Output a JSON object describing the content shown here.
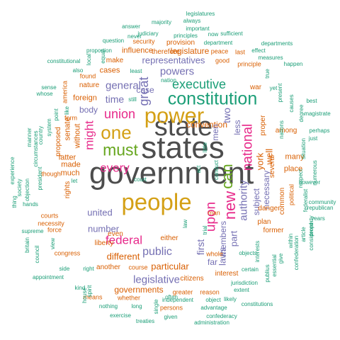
{
  "colors": {
    "dark_gray": "#4d4d4d",
    "gold": "#d4a016",
    "teal": "#1b9e77",
    "orange": "#d95f02",
    "purple": "#7570b3",
    "magenta": "#e7298a",
    "green": "#66a61e"
  },
  "words": [
    {
      "text": "government",
      "size": 1,
      "color": "dark_gray",
      "weight": 200
    },
    {
      "text": "states",
      "size": 1,
      "color": "dark_gray",
      "weight": 190
    },
    {
      "text": "state",
      "size": 1,
      "color": "dark_gray",
      "weight": 180
    },
    {
      "text": "power",
      "size": 1,
      "color": "gold",
      "weight": 120
    },
    {
      "text": "people",
      "size": 1,
      "color": "gold",
      "weight": 120
    },
    {
      "text": "constitution",
      "size": 1,
      "color": "teal",
      "weight": 110
    },
    {
      "text": "one",
      "size": 1,
      "color": "gold",
      "weight": 100
    },
    {
      "text": "can",
      "size": 1,
      "color": "green",
      "weight": 95
    },
    {
      "text": "must",
      "size": 1,
      "color": "green",
      "weight": 90
    },
    {
      "text": "new",
      "size": 1,
      "color": "magenta",
      "weight": 85
    },
    {
      "text": "upon",
      "size": 1,
      "color": "magenta",
      "weight": 80
    },
    {
      "text": "national",
      "size": 1,
      "color": "magenta",
      "weight": 70
    },
    {
      "text": "union",
      "size": 1,
      "color": "magenta",
      "weight": 70
    },
    {
      "text": "might",
      "size": 1,
      "color": "magenta",
      "weight": 65
    },
    {
      "text": "every",
      "size": 1,
      "color": "magenta",
      "weight": 60
    },
    {
      "text": "federal",
      "size": 1,
      "color": "magenta",
      "weight": 60
    },
    {
      "text": "great",
      "size": 1,
      "color": "purple",
      "weight": 55
    },
    {
      "text": "executive",
      "size": 1,
      "color": "teal",
      "weight": 55
    },
    {
      "text": "authority",
      "size": 1,
      "color": "purple",
      "weight": 50
    },
    {
      "text": "public",
      "size": 1,
      "color": "purple",
      "weight": 45
    },
    {
      "text": "general",
      "size": 1,
      "color": "purple",
      "weight": 45
    },
    {
      "text": "powers",
      "size": 1,
      "color": "purple",
      "weight": 45
    },
    {
      "text": "legislative",
      "size": 1,
      "color": "purple",
      "weight": 40
    },
    {
      "text": "first",
      "size": 1,
      "color": "purple",
      "weight": 40
    },
    {
      "text": "representatives",
      "size": 1,
      "color": "purple",
      "weight": 40
    },
    {
      "text": "time",
      "size": 1,
      "color": "purple",
      "weight": 40
    },
    {
      "text": "two",
      "size": 1,
      "color": "purple",
      "weight": 40
    },
    {
      "text": "part",
      "size": 1,
      "color": "purple",
      "weight": 35
    },
    {
      "text": "laws",
      "size": 1,
      "color": "purple",
      "weight": 35
    },
    {
      "text": "york",
      "size": 1,
      "color": "orange",
      "weight": 35
    },
    {
      "text": "well",
      "size": 1,
      "color": "orange",
      "weight": 35
    },
    {
      "text": "legislature",
      "size": 1,
      "color": "orange",
      "weight": 30
    },
    {
      "text": "particular",
      "size": 1,
      "color": "orange",
      "weight": 30
    },
    {
      "text": "different",
      "size": 1,
      "color": "orange",
      "weight": 30
    },
    {
      "text": "governments",
      "size": 1,
      "color": "orange",
      "weight": 30
    },
    {
      "text": "convention",
      "size": 1,
      "color": "orange",
      "weight": 30
    },
    {
      "text": "number",
      "size": 1,
      "color": "purple",
      "weight": 30
    },
    {
      "text": "united",
      "size": 1,
      "color": "purple",
      "weight": 28
    },
    {
      "text": "men",
      "size": 1,
      "color": "purple",
      "weight": 28
    },
    {
      "text": "less",
      "size": 1,
      "color": "purple",
      "weight": 28
    },
    {
      "text": "members",
      "size": 1,
      "color": "purple",
      "weight": 28
    },
    {
      "text": "subject",
      "size": 1,
      "color": "purple",
      "weight": 28
    },
    {
      "text": "necessary",
      "size": 1,
      "color": "purple",
      "weight": 28
    },
    {
      "text": "body",
      "size": 1,
      "color": "purple",
      "weight": 25
    },
    {
      "text": "case",
      "size": 1,
      "color": "purple",
      "weight": 25
    },
    {
      "text": "far",
      "size": 1,
      "color": "purple",
      "weight": 25
    },
    {
      "text": "cases",
      "size": 1,
      "color": "orange",
      "weight": 22
    },
    {
      "text": "influence",
      "size": 1,
      "color": "orange",
      "weight": 22
    },
    {
      "text": "therefore",
      "size": 1,
      "color": "orange",
      "weight": 20
    },
    {
      "text": "senate",
      "size": 1,
      "color": "orange",
      "weight": 20
    },
    {
      "text": "made",
      "size": 1,
      "color": "orange",
      "weight": 20
    },
    {
      "text": "much",
      "size": 1,
      "color": "orange",
      "weight": 20
    },
    {
      "text": "latter",
      "size": 1,
      "color": "orange",
      "weight": 20
    },
    {
      "text": "without",
      "size": 1,
      "color": "orange",
      "weight": 20
    },
    {
      "text": "proposed",
      "size": 1,
      "color": "orange",
      "weight": 20
    },
    {
      "text": "foreign",
      "size": 1,
      "color": "orange",
      "weight": 20
    },
    {
      "text": "nature",
      "size": 1,
      "color": "orange",
      "weight": 18
    },
    {
      "text": "rights",
      "size": 1,
      "color": "orange",
      "weight": 18
    },
    {
      "text": "even",
      "size": 1,
      "color": "orange",
      "weight": 18
    },
    {
      "text": "liberty",
      "size": 1,
      "color": "orange",
      "weight": 18
    },
    {
      "text": "another",
      "size": 1,
      "color": "orange",
      "weight": 18
    },
    {
      "text": "either",
      "size": 1,
      "color": "orange",
      "weight": 18
    },
    {
      "text": "citizens",
      "size": 1,
      "color": "orange",
      "weight": 18
    },
    {
      "text": "interest",
      "size": 1,
      "color": "orange",
      "weight": 18
    },
    {
      "text": "plan",
      "size": 1,
      "color": "orange",
      "weight": 18
    },
    {
      "text": "former",
      "size": 1,
      "color": "orange",
      "weight": 18
    },
    {
      "text": "several",
      "size": 1,
      "color": "orange",
      "weight": 18
    },
    {
      "text": "many",
      "size": 1,
      "color": "orange",
      "weight": 18
    },
    {
      "text": "place",
      "size": 1,
      "color": "orange",
      "weight": 18
    },
    {
      "text": "proper",
      "size": 1,
      "color": "orange",
      "weight": 18
    },
    {
      "text": "danger",
      "size": 1,
      "color": "orange",
      "weight": 16
    },
    {
      "text": "common",
      "size": 1,
      "color": "orange",
      "weight": 16
    },
    {
      "text": "political",
      "size": 1,
      "color": "orange",
      "weight": 16
    },
    {
      "text": "among",
      "size": 1,
      "color": "orange",
      "weight": 16
    },
    {
      "text": "war",
      "size": 1,
      "color": "orange",
      "weight": 16
    },
    {
      "text": "make",
      "size": 1,
      "color": "orange",
      "weight": 16
    },
    {
      "text": "provision",
      "size": 1,
      "color": "orange",
      "weight": 16
    },
    {
      "text": "security",
      "size": 1,
      "color": "orange",
      "weight": 14
    },
    {
      "text": "peace",
      "size": 1,
      "color": "orange",
      "weight": 14
    },
    {
      "text": "good",
      "size": 1,
      "color": "orange",
      "weight": 14
    },
    {
      "text": "principle",
      "size": 1,
      "color": "orange",
      "weight": 14
    },
    {
      "text": "last",
      "size": 1,
      "color": "orange",
      "weight": 14
    },
    {
      "text": "greater",
      "size": 1,
      "color": "orange",
      "weight": 14
    },
    {
      "text": "reason",
      "size": 1,
      "color": "orange",
      "weight": 14
    },
    {
      "text": "whole",
      "size": 1,
      "color": "orange",
      "weight": 14
    },
    {
      "text": "man",
      "size": 1,
      "color": "orange",
      "weight": 14
    },
    {
      "text": "whether",
      "size": 1,
      "color": "orange",
      "weight": 14
    },
    {
      "text": "persons",
      "size": 1,
      "color": "orange",
      "weight": 14
    },
    {
      "text": "means",
      "size": 1,
      "color": "orange",
      "weight": 14
    },
    {
      "text": "course",
      "size": 1,
      "color": "orange",
      "weight": 14
    },
    {
      "text": "force",
      "size": 1,
      "color": "orange",
      "weight": 14
    },
    {
      "text": "though",
      "size": 1,
      "color": "orange",
      "weight": 14
    },
    {
      "text": "congress",
      "size": 1,
      "color": "orange",
      "weight": 14
    },
    {
      "text": "courts",
      "size": 1,
      "color": "orange",
      "weight": 14
    },
    {
      "text": "necessity",
      "size": 1,
      "color": "orange",
      "weight": 14
    },
    {
      "text": "america",
      "size": 1,
      "color": "orange",
      "weight": 14
    },
    {
      "text": "found",
      "size": 1,
      "color": "orange",
      "weight": 14
    },
    {
      "text": "form",
      "size": 1,
      "color": "orange",
      "weight": 14
    },
    {
      "text": "independent",
      "size": 1,
      "color": "teal",
      "weight": 12
    },
    {
      "text": "object",
      "size": 1,
      "color": "teal",
      "weight": 12
    },
    {
      "text": "advantage",
      "size": 1,
      "color": "teal",
      "weight": 12
    },
    {
      "text": "confederacy",
      "size": 1,
      "color": "teal",
      "weight": 12
    },
    {
      "text": "administration",
      "size": 1,
      "color": "teal",
      "weight": 12
    },
    {
      "text": "constitutions",
      "size": 1,
      "color": "teal",
      "weight": 12
    },
    {
      "text": "jurisdiction",
      "size": 1,
      "color": "teal",
      "weight": 12
    },
    {
      "text": "extent",
      "size": 1,
      "color": "teal",
      "weight": 12
    },
    {
      "text": "likely",
      "size": 1,
      "color": "teal",
      "weight": 12
    },
    {
      "text": "certain",
      "size": 1,
      "color": "teal",
      "weight": 12
    },
    {
      "text": "objects",
      "size": 1,
      "color": "teal",
      "weight": 12
    },
    {
      "text": "interests",
      "size": 1,
      "color": "teal",
      "weight": 12
    },
    {
      "text": "within",
      "size": 1,
      "color": "teal",
      "weight": 12
    },
    {
      "text": "confederation",
      "size": 1,
      "color": "teal",
      "weight": 12
    },
    {
      "text": "respect",
      "size": 1,
      "color": "teal",
      "weight": 12
    },
    {
      "text": "causes",
      "size": 1,
      "color": "teal",
      "weight": 12
    },
    {
      "text": "nations",
      "size": 1,
      "color": "teal",
      "weight": 12
    },
    {
      "text": "however",
      "size": 1,
      "color": "teal",
      "weight": 12
    },
    {
      "text": "situation",
      "size": 1,
      "color": "teal",
      "weight": 12
    },
    {
      "text": "numerous",
      "size": 1,
      "color": "teal",
      "weight": 10
    },
    {
      "text": "federalist",
      "size": 1,
      "color": "teal",
      "weight": 10
    },
    {
      "text": "community",
      "size": 1,
      "color": "teal",
      "weight": 10
    },
    {
      "text": "republican",
      "size": 1,
      "color": "teal",
      "weight": 10
    },
    {
      "text": "years",
      "size": 1,
      "color": "teal",
      "weight": 10
    },
    {
      "text": "property",
      "size": 1,
      "color": "teal",
      "weight": 10
    },
    {
      "text": "article",
      "size": 1,
      "color": "teal",
      "weight": 10
    },
    {
      "text": "considered",
      "size": 1,
      "color": "teal",
      "weight": 10
    },
    {
      "text": "states2",
      "size": 1,
      "color": "teal",
      "weight": 10
    },
    {
      "text": "essential",
      "size": 1,
      "color": "teal",
      "weight": 10
    },
    {
      "text": "give",
      "size": 1,
      "color": "teal",
      "weight": 10
    },
    {
      "text": "publius",
      "size": 1,
      "color": "teal",
      "weight": 10
    },
    {
      "text": "magistrate",
      "size": 1,
      "color": "teal",
      "weight": 10
    },
    {
      "text": "best",
      "size": 1,
      "color": "teal",
      "weight": 10
    },
    {
      "text": "perhaps",
      "size": 1,
      "color": "teal",
      "weight": 10
    },
    {
      "text": "just",
      "size": 1,
      "color": "teal",
      "weight": 10
    },
    {
      "text": "degree",
      "size": 1,
      "color": "teal",
      "weight": 10
    },
    {
      "text": "present",
      "size": 1,
      "color": "teal",
      "weight": 10
    },
    {
      "text": "yet",
      "size": 1,
      "color": "teal",
      "weight": 10
    },
    {
      "text": "true",
      "size": 1,
      "color": "teal",
      "weight": 10
    },
    {
      "text": "happen",
      "size": 1,
      "color": "teal",
      "weight": 10
    },
    {
      "text": "measures",
      "size": 1,
      "color": "teal",
      "weight": 10
    },
    {
      "text": "effect",
      "size": 1,
      "color": "teal",
      "weight": 10
    },
    {
      "text": "departments",
      "size": 1,
      "color": "teal",
      "weight": 10
    },
    {
      "text": "sufficient",
      "size": 1,
      "color": "teal",
      "weight": 10
    },
    {
      "text": "now",
      "size": 1,
      "color": "teal",
      "weight": 10
    },
    {
      "text": "department",
      "size": 1,
      "color": "teal",
      "weight": 10
    },
    {
      "text": "important",
      "size": 1,
      "color": "teal",
      "weight": 10
    },
    {
      "text": "always",
      "size": 1,
      "color": "teal",
      "weight": 10
    },
    {
      "text": "majority",
      "size": 1,
      "color": "teal",
      "weight": 10
    },
    {
      "text": "legislatures",
      "size": 1,
      "color": "teal",
      "weight": 10
    },
    {
      "text": "answer",
      "size": 1,
      "color": "teal",
      "weight": 10
    },
    {
      "text": "judiciary",
      "size": 1,
      "color": "teal",
      "weight": 10
    },
    {
      "text": "never",
      "size": 1,
      "color": "teal",
      "weight": 10
    },
    {
      "text": "principles",
      "size": 1,
      "color": "teal",
      "weight": 10
    },
    {
      "text": "equal",
      "size": 1,
      "color": "teal",
      "weight": 10
    },
    {
      "text": "question",
      "size": 1,
      "color": "teal",
      "weight": 10
    },
    {
      "text": "proportion",
      "size": 1,
      "color": "teal",
      "weight": 10
    },
    {
      "text": "local",
      "size": 1,
      "color": "teal",
      "weight": 10
    },
    {
      "text": "constitutional",
      "size": 1,
      "color": "teal",
      "weight": 10
    },
    {
      "text": "also",
      "size": 1,
      "color": "teal",
      "weight": 10
    },
    {
      "text": "least",
      "size": 1,
      "color": "teal",
      "weight": 10
    },
    {
      "text": "sense",
      "size": 1,
      "color": "teal",
      "weight": 10
    },
    {
      "text": "whose",
      "size": 1,
      "color": "teal",
      "weight": 10
    },
    {
      "text": "like",
      "size": 1,
      "color": "teal",
      "weight": 10
    },
    {
      "text": "still",
      "size": 1,
      "color": "teal",
      "weight": 10
    },
    {
      "text": "manner",
      "size": 1,
      "color": "teal",
      "weight": 10
    },
    {
      "text": "circumstances",
      "size": 1,
      "color": "teal",
      "weight": 10
    },
    {
      "text": "country",
      "size": 1,
      "color": "teal",
      "weight": 10
    },
    {
      "text": "system",
      "size": 1,
      "color": "teal",
      "weight": 10
    },
    {
      "text": "point",
      "size": 1,
      "color": "teal",
      "weight": 10
    },
    {
      "text": "experience",
      "size": 1,
      "color": "teal",
      "weight": 10
    },
    {
      "text": "president",
      "size": 1,
      "color": "teal",
      "weight": 10
    },
    {
      "text": "society",
      "size": 1,
      "color": "teal",
      "weight": 10
    },
    {
      "text": "objection",
      "size": 1,
      "color": "teal",
      "weight": 10
    },
    {
      "text": "thing",
      "size": 1,
      "color": "teal",
      "weight": 10
    },
    {
      "text": "hands",
      "size": 1,
      "color": "teal",
      "weight": 10
    },
    {
      "text": "supreme",
      "size": 1,
      "color": "teal",
      "weight": 10
    },
    {
      "text": "britain",
      "size": 1,
      "color": "teal",
      "weight": 10
    },
    {
      "text": "view",
      "size": 1,
      "color": "teal",
      "weight": 10
    },
    {
      "text": "council",
      "size": 1,
      "color": "teal",
      "weight": 10
    },
    {
      "text": "side",
      "size": 1,
      "color": "teal",
      "weight": 10
    },
    {
      "text": "appointment",
      "size": 1,
      "color": "teal",
      "weight": 10
    },
    {
      "text": "kind",
      "size": 1,
      "color": "teal",
      "weight": 10
    },
    {
      "text": "house",
      "size": 1,
      "color": "teal",
      "weight": 10
    },
    {
      "text": "spirit",
      "size": 1,
      "color": "teal",
      "weight": 10
    },
    {
      "text": "nothing",
      "size": 1,
      "color": "teal",
      "weight": 10
    },
    {
      "text": "exercise",
      "size": 1,
      "color": "teal",
      "weight": 10
    },
    {
      "text": "treaties",
      "size": 1,
      "color": "teal",
      "weight": 10
    },
    {
      "text": "given",
      "size": 1,
      "color": "teal",
      "weight": 10
    },
    {
      "text": "long",
      "size": 1,
      "color": "teal",
      "weight": 10
    },
    {
      "text": "single",
      "size": 1,
      "color": "teal",
      "weight": 10
    },
    {
      "text": "often",
      "size": 1,
      "color": "teal",
      "weight": 10
    },
    {
      "text": "trial",
      "size": 1,
      "color": "teal",
      "weight": 10
    },
    {
      "text": "law",
      "size": 1,
      "color": "teal",
      "weight": 10
    },
    {
      "text": "act",
      "size": 1,
      "color": "teal",
      "weight": 10
    },
    {
      "text": "conduct",
      "size": 1,
      "color": "teal",
      "weight": 10
    },
    {
      "text": "little",
      "size": 1,
      "color": "teal",
      "weight": 10
    },
    {
      "text": "court",
      "size": 1,
      "color": "teal",
      "weight": 10
    },
    {
      "text": "let",
      "size": 1,
      "color": "teal",
      "weight": 10
    },
    {
      "text": "right",
      "size": 1,
      "color": "teal",
      "weight": 10
    },
    {
      "text": "nation",
      "size": 1,
      "color": "teal",
      "weight": 10
    }
  ]
}
